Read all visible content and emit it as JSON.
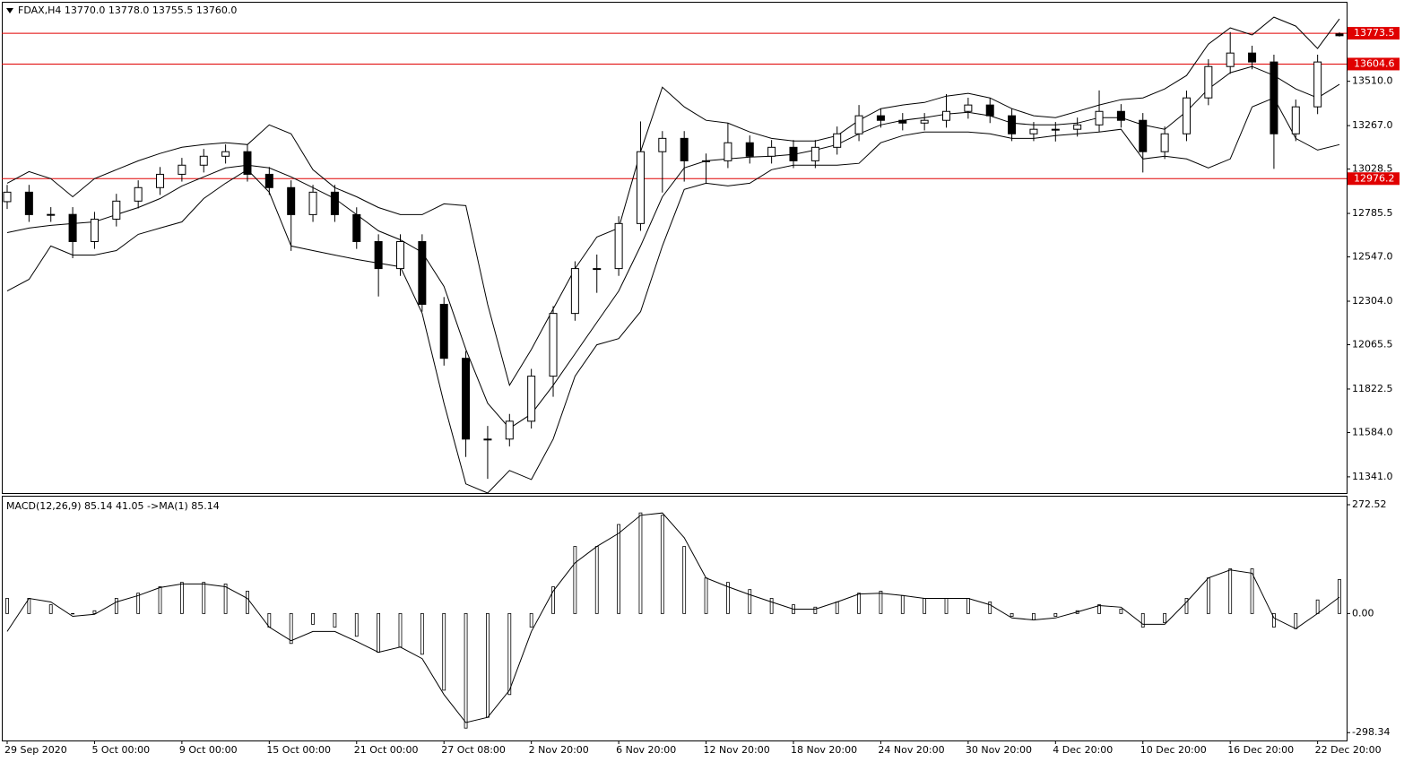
{
  "chart_data": [
    {
      "type": "candlestick",
      "title": "FDAX,H4  13770.0 13778.0 13755.5 13760.0",
      "categories": [
        "29 Sep 2020",
        null,
        null,
        null,
        "5 Oct 00:00",
        null,
        null,
        null,
        "9 Oct 00:00",
        null,
        null,
        null,
        "15 Oct 00:00",
        null,
        null,
        null,
        "21 Oct 00:00",
        null,
        null,
        null,
        "27 Oct 08:00",
        null,
        null,
        null,
        "2 Nov 20:00",
        null,
        null,
        null,
        "6 Nov 20:00",
        null,
        null,
        null,
        "12 Nov 20:00",
        null,
        null,
        null,
        "18 Nov 20:00",
        null,
        null,
        null,
        "24 Nov 20:00",
        null,
        null,
        null,
        "30 Nov 20:00",
        null,
        null,
        null,
        "4 Dec 20:00",
        null,
        null,
        null,
        "10 Dec 20:00",
        null,
        null,
        null,
        "16 Dec 20:00",
        null,
        null,
        null,
        "22 Dec 20:00",
        null
      ],
      "open": [
        12850,
        12902,
        12779,
        12780,
        12631,
        12754,
        12853,
        12927,
        13000,
        13050,
        13099,
        13124,
        13000,
        12927,
        12779,
        12902,
        12779,
        12631,
        12483,
        12631,
        12287,
        11991,
        11548,
        11548,
        11646,
        11893,
        12237,
        12483,
        12483,
        12730,
        13124,
        13197,
        13074,
        13074,
        13173,
        13099,
        13148,
        13074,
        13148,
        13222,
        13321,
        13296,
        13281,
        13296,
        13345,
        13380,
        13321,
        13222,
        13247,
        13247,
        13271,
        13345,
        13296,
        13124,
        13222,
        13419,
        13591,
        13665,
        13616,
        13222,
        13370,
        13770
      ],
      "high": [
        12942,
        12942,
        12820,
        12820,
        12794,
        12893,
        12967,
        13040,
        13090,
        13139,
        13164,
        13164,
        13040,
        12967,
        12942,
        12942,
        12819,
        12671,
        12671,
        12671,
        12327,
        12031,
        11620,
        11686,
        11933,
        12277,
        12523,
        12560,
        12770,
        13290,
        13237,
        13237,
        13114,
        13280,
        13213,
        13188,
        13188,
        13188,
        13262,
        13380,
        13361,
        13336,
        13336,
        13440,
        13420,
        13420,
        13361,
        13287,
        13287,
        13311,
        13460,
        13385,
        13336,
        13262,
        13459,
        13631,
        13780,
        13705,
        13656,
        13410,
        13656,
        13778
      ],
      "low": [
        12810,
        12739,
        12739,
        12540,
        12591,
        12714,
        12813,
        12887,
        12960,
        13010,
        13059,
        12960,
        12887,
        12580,
        12739,
        12739,
        12591,
        12330,
        12443,
        12247,
        11951,
        11450,
        11330,
        11508,
        11606,
        11780,
        12197,
        12350,
        12443,
        12690,
        12900,
        12960,
        12950,
        13034,
        13059,
        13059,
        13034,
        13034,
        13108,
        13182,
        13256,
        13241,
        13241,
        13256,
        13305,
        13281,
        13182,
        13182,
        13180,
        13207,
        13231,
        13256,
        13010,
        13084,
        13182,
        13379,
        13551,
        13576,
        13030,
        13182,
        13330,
        13755.5
      ],
      "close": [
        12902,
        12779,
        12780,
        12631,
        12754,
        12853,
        12927,
        13000,
        13050,
        13099,
        13124,
        13000,
        12927,
        12779,
        12902,
        12779,
        12631,
        12483,
        12631,
        12287,
        11991,
        11548,
        11548,
        11646,
        11893,
        12237,
        12483,
        12483,
        12730,
        13124,
        13197,
        13074,
        13074,
        13173,
        13099,
        13148,
        13074,
        13148,
        13222,
        13321,
        13296,
        13281,
        13296,
        13345,
        13380,
        13321,
        13222,
        13247,
        13247,
        13271,
        13345,
        13296,
        13124,
        13222,
        13419,
        13591,
        13665,
        13616,
        13222,
        13370,
        13616,
        13760
      ],
      "up_color": "#ffffff",
      "down_color": "#000000",
      "edge_color": "#000000",
      "series": [
        {
          "color": "#000000",
          "values": [
            12951,
            13015,
            12976,
            12877,
            12976,
            13025,
            13074,
            13114,
            13148,
            13163,
            13173,
            13163,
            13271,
            13222,
            13025,
            12927,
            12877,
            12818,
            12779,
            12779,
            12838,
            12828,
            12287,
            11843,
            12040,
            12262,
            12483,
            12656,
            12705,
            13124,
            13478,
            13370,
            13296,
            13281,
            13232,
            13197,
            13183,
            13183,
            13212,
            13296,
            13360,
            13380,
            13394,
            13429,
            13444,
            13419,
            13360,
            13321,
            13311,
            13345,
            13380,
            13409,
            13419,
            13468,
            13542,
            13714,
            13803,
            13764,
            13862,
            13813,
            13690,
            13852
          ]
        },
        {
          "color": "#000000",
          "values": [
            12680,
            12705,
            12720,
            12730,
            12739,
            12779,
            12818,
            12867,
            12936,
            12986,
            13035,
            13050,
            13035,
            12986,
            12927,
            12867,
            12779,
            12690,
            12641,
            12572,
            12385,
            12040,
            11745,
            11607,
            11686,
            11843,
            12016,
            12188,
            12360,
            12607,
            12877,
            13035,
            13074,
            13084,
            13094,
            13099,
            13109,
            13133,
            13163,
            13222,
            13271,
            13296,
            13311,
            13330,
            13340,
            13321,
            13281,
            13271,
            13271,
            13281,
            13311,
            13311,
            13271,
            13247,
            13345,
            13468,
            13557,
            13591,
            13542,
            13468,
            13419,
            13493
          ]
        },
        {
          "color": "#000000",
          "values": [
            12360,
            12424,
            12607,
            12557,
            12557,
            12582,
            12671,
            12705,
            12739,
            12867,
            12951,
            13025,
            12902,
            12607,
            12582,
            12557,
            12533,
            12513,
            12493,
            12237,
            11745,
            11302,
            11252,
            11376,
            11326,
            11548,
            11893,
            12065,
            12099,
            12247,
            12607,
            12917,
            12951,
            12936,
            12951,
            13025,
            13050,
            13050,
            13050,
            13060,
            13173,
            13212,
            13232,
            13232,
            13232,
            13222,
            13197,
            13197,
            13212,
            13222,
            13232,
            13247,
            13084,
            13099,
            13084,
            13035,
            13084,
            13370,
            13419,
            13197,
            13133,
            13163
          ]
        }
      ],
      "hlines": [
        {
          "value": 13773.5,
          "color": "#e00000"
        },
        {
          "value": 13604.6,
          "color": "#e00000"
        },
        {
          "value": 12976.2,
          "color": "#e00000"
        }
      ],
      "ylim": [
        11252,
        13946
      ],
      "yticks": [
        {
          "value": 13510,
          "label": "13510.0"
        },
        {
          "value": 13267,
          "label": "13267.0"
        },
        13028.5,
        12785.5,
        {
          "value": 12547,
          "label": "12547.0"
        },
        {
          "value": 12304,
          "label": "12304.0"
        },
        12065.5,
        11822.5,
        {
          "value": 11584,
          "label": "11584.0"
        },
        {
          "value": 11341,
          "label": "11341.0"
        }
      ]
    },
    {
      "type": "macd",
      "title": "MACD(12,26,9) 85.14 41.05  ->MA(1) 85.14",
      "values": [
        38,
        38,
        22,
        0,
        7,
        38,
        51,
        67,
        78,
        78,
        74,
        56,
        -34,
        -75,
        -27,
        -34,
        -57,
        -97,
        -84,
        -102,
        -192,
        -287,
        -260,
        -203,
        -34,
        67,
        168,
        168,
        223,
        252,
        246,
        168,
        89,
        78,
        60,
        38,
        22,
        16,
        29,
        51,
        56,
        45,
        38,
        38,
        38,
        29,
        -7,
        -16,
        -7,
        7,
        22,
        11,
        -34,
        -23,
        38,
        89,
        112,
        112,
        -34,
        -38,
        34,
        85.14
      ],
      "signal": [
        -45,
        38,
        29,
        -7,
        -2,
        29,
        45,
        65,
        74,
        74,
        67,
        38,
        -34,
        -68,
        -45,
        -45,
        -70,
        -97,
        -84,
        -113,
        -203,
        -273,
        -260,
        -192,
        -45,
        56,
        127,
        168,
        201,
        246,
        252,
        190,
        89,
        67,
        47,
        29,
        11,
        11,
        29,
        49,
        51,
        45,
        38,
        38,
        38,
        22,
        -11,
        -16,
        -11,
        4,
        20,
        16,
        -27,
        -27,
        29,
        89,
        109,
        101,
        -11,
        -38,
        0,
        41.05
      ],
      "color": "#000000",
      "ylim": [
        -318,
        295
      ],
      "yticks": [
        272.52,
        {
          "value": 0,
          "label": "0.00"
        },
        -298.34
      ]
    }
  ]
}
